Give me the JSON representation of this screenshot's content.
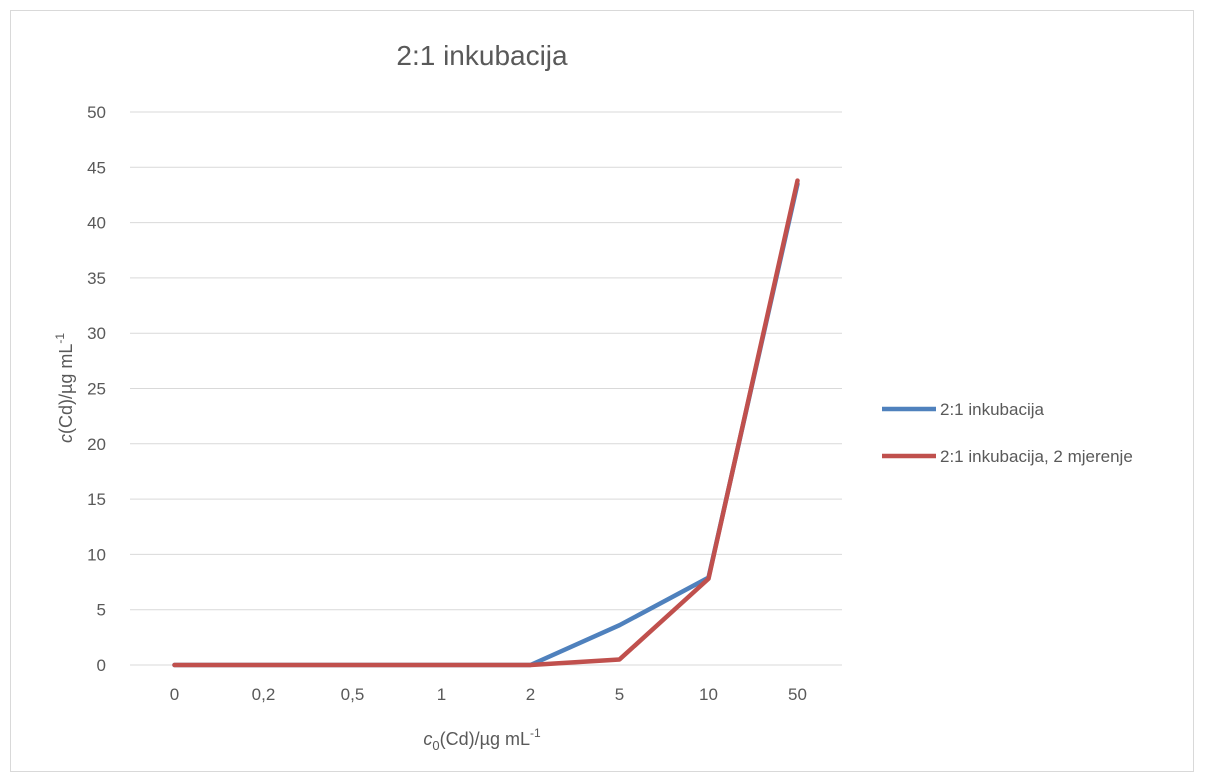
{
  "chart_data": {
    "type": "line",
    "title": "2:1 inkubacija",
    "xlabel": "c0(Cd)/µg mL-1",
    "ylabel": "c(Cd)/µg mL-1",
    "xlabel_parts": {
      "var": "c",
      "sub": "0",
      "main": "(Cd)/µg mL",
      "sup": "-1"
    },
    "ylabel_parts": {
      "var": "c",
      "main": "(Cd)/µg mL",
      "sup": "-1"
    },
    "categories": [
      "0",
      "0,2",
      "0,5",
      "1",
      "2",
      "5",
      "10",
      "50"
    ],
    "ylim": [
      0,
      50
    ],
    "yticks": [
      0,
      5,
      10,
      15,
      20,
      25,
      30,
      35,
      40,
      45,
      50
    ],
    "grid": true,
    "legend_position": "right",
    "series": [
      {
        "name": "2:1 inkubacija",
        "color": "#4f81bd",
        "values": [
          0,
          0,
          0,
          0,
          0,
          3.6,
          7.9,
          43.5
        ]
      },
      {
        "name": "2:1 inkubacija, 2 mjerenje",
        "color": "#c0504d",
        "values": [
          0,
          0,
          0,
          0,
          0,
          0.5,
          7.8,
          43.8
        ]
      }
    ]
  }
}
